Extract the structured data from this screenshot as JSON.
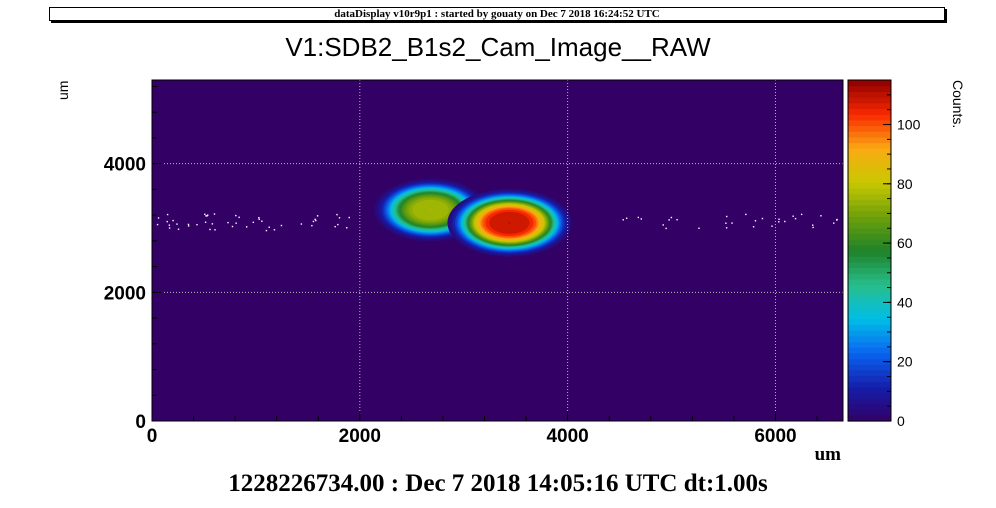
{
  "header": {
    "text": "dataDisplay v10r9p1 : started by gouaty on Dec  7 2018 16:24:52 UTC"
  },
  "title": "V1:SDB2_B1s2_Cam_Image__RAW",
  "footer": "1228226734.00 : Dec  7 2018 14:05:16 UTC dt:1.00s",
  "colors": {
    "background_bin": "#330066",
    "grid": "#bbbbbb"
  },
  "chart_data": {
    "type": "heatmap",
    "title": "V1:SDB2_B1s2_Cam_Image__RAW",
    "xlabel": "um",
    "ylabel": "um",
    "zlabel": "Counts.",
    "xlim": [
      0,
      6650
    ],
    "ylim": [
      0,
      5300
    ],
    "zlim": [
      0,
      115
    ],
    "x_ticks": [
      0,
      2000,
      4000,
      6000
    ],
    "y_ticks": [
      0,
      2000,
      4000
    ],
    "z_ticks": [
      0,
      20,
      40,
      60,
      80,
      100
    ],
    "grid": true,
    "blobs": [
      {
        "x": 2680,
        "y": 3280,
        "peak": 78,
        "sigma_x": 300,
        "sigma_y": 270
      },
      {
        "x": 3440,
        "y": 3080,
        "peak": 112,
        "sigma_x": 330,
        "sigma_y": 290
      }
    ],
    "noise_band_y": 3100
  }
}
